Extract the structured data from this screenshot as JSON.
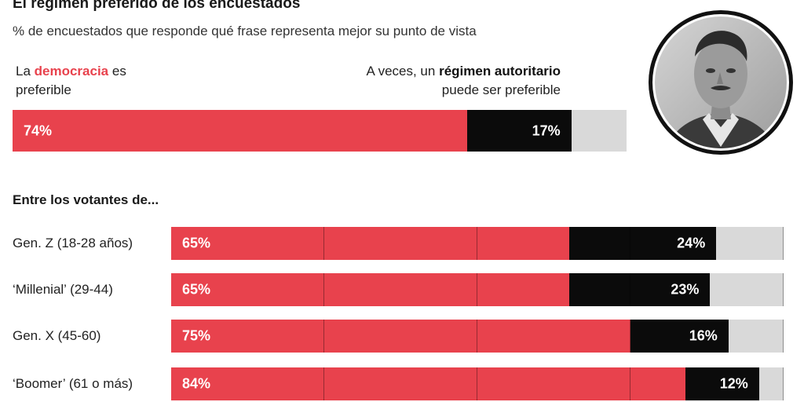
{
  "header": {
    "title": "El régimen preferido de los encuestados",
    "subtitle": "% de encuestados que responde qué frase representa mejor su punto de vista"
  },
  "legend": {
    "left_pre": "La ",
    "left_emph": "democracia",
    "left_post": " es",
    "left_line2": "preferible",
    "right_pre": "A veces, un ",
    "right_emph": "régimen autoritario",
    "right_line2": "puede ser preferible"
  },
  "section": {
    "heading": "Entre los votantes de..."
  },
  "colors": {
    "democracy": "#e8424d",
    "authoritarian": "#0b0b0b",
    "remainder": "#d9d9d9"
  },
  "image": {
    "subject": "portrait-photo"
  },
  "chart_data": {
    "type": "bar",
    "stacked": true,
    "orientation": "horizontal",
    "title": "El régimen preferido de los encuestados",
    "subtitle": "% de encuestados que responde qué frase representa mejor su punto de vista",
    "xlim": [
      0,
      100
    ],
    "xgrid": true,
    "series_names": [
      "La democracia es preferible",
      "A veces, un régimen autoritario puede ser preferible"
    ],
    "total": {
      "name": "Total",
      "values": [
        74,
        17
      ],
      "labels": [
        "74%",
        "17%"
      ]
    },
    "groups": [
      {
        "name": "Gen. Z",
        "range": "(18-28 años)",
        "values": [
          65,
          24
        ],
        "labels": [
          "65%",
          "24%"
        ]
      },
      {
        "name": "‘Millenial’",
        "range": "(29-44)",
        "values": [
          65,
          23
        ],
        "labels": [
          "65%",
          "23%"
        ]
      },
      {
        "name": "Gen. X",
        "range": "(45-60)",
        "values": [
          75,
          16
        ],
        "labels": [
          "75%",
          "16%"
        ]
      },
      {
        "name": "‘Boomer’",
        "range": "(61 o más)",
        "values": [
          84,
          12
        ],
        "labels": [
          "84%",
          "12%"
        ]
      }
    ]
  }
}
